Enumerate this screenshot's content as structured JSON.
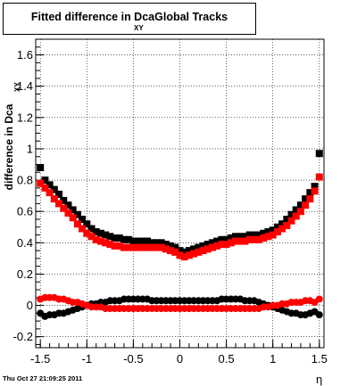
{
  "title": {
    "main_left": "Fitted difference in Dca",
    "subscript": "XY",
    "main_right": "Global Tracks"
  },
  "footer": "Thu Oct 27 21:09:25 2011",
  "colors": {
    "series_black": "#000000",
    "series_red": "#ff0000",
    "grid": "#000000",
    "background": "#ffffff"
  },
  "chart_data": {
    "type": "scatter",
    "title": "Fitted difference in Dca XY Global Tracks",
    "xlabel": "η",
    "ylabel": "difference in Dca",
    "ylabel_subscript": "XY",
    "xlim": [
      -1.55,
      1.55
    ],
    "ylim": [
      -0.27,
      1.7
    ],
    "x_ticks": [
      -1.5,
      -1,
      -0.5,
      0,
      0.5,
      1,
      1.5
    ],
    "x_tick_labels": [
      "-1.5",
      "-1",
      "-0.5",
      "0",
      "0.5",
      "1",
      "1.5"
    ],
    "y_ticks": [
      -0.2,
      0,
      0.2,
      0.4,
      0.6,
      0.8,
      1,
      1.2,
      1.4,
      1.6
    ],
    "y_tick_labels": [
      "-0.2",
      "0",
      "0.2",
      "0.4",
      "0.6",
      "0.8",
      "1",
      "1.2",
      "1.4",
      "1.6"
    ],
    "grid": true,
    "x_step": 0.05,
    "x_start": -1.5,
    "series": [
      {
        "marker": "square",
        "color": "#000000",
        "values": [
          0.88,
          0.8,
          0.77,
          0.74,
          0.71,
          0.67,
          0.64,
          0.61,
          0.58,
          0.55,
          0.52,
          0.49,
          0.47,
          0.46,
          0.45,
          0.44,
          0.43,
          0.43,
          0.42,
          0.42,
          0.41,
          0.41,
          0.41,
          0.41,
          0.4,
          0.4,
          0.4,
          0.39,
          0.38,
          0.37,
          0.35,
          0.34,
          0.35,
          0.36,
          0.37,
          0.38,
          0.39,
          0.4,
          0.41,
          0.42,
          0.42,
          0.43,
          0.44,
          0.44,
          0.44,
          0.45,
          0.45,
          0.45,
          0.46,
          0.47,
          0.48,
          0.5,
          0.52,
          0.55,
          0.58,
          0.61,
          0.64,
          0.68,
          0.72,
          0.76,
          0.97
        ]
      },
      {
        "marker": "square",
        "color": "#ff0000",
        "values": [
          0.78,
          0.75,
          0.72,
          0.68,
          0.65,
          0.62,
          0.59,
          0.56,
          0.52,
          0.49,
          0.46,
          0.44,
          0.42,
          0.41,
          0.4,
          0.39,
          0.38,
          0.38,
          0.37,
          0.37,
          0.37,
          0.37,
          0.37,
          0.37,
          0.37,
          0.37,
          0.37,
          0.36,
          0.35,
          0.34,
          0.32,
          0.31,
          0.32,
          0.33,
          0.34,
          0.35,
          0.36,
          0.37,
          0.38,
          0.39,
          0.39,
          0.4,
          0.41,
          0.41,
          0.41,
          0.42,
          0.42,
          0.42,
          0.43,
          0.44,
          0.45,
          0.47,
          0.49,
          0.51,
          0.54,
          0.57,
          0.6,
          0.64,
          0.68,
          0.73,
          0.82
        ]
      },
      {
        "marker": "circle",
        "color": "#000000",
        "values": [
          -0.05,
          -0.07,
          -0.06,
          -0.06,
          -0.05,
          -0.05,
          -0.04,
          -0.03,
          -0.02,
          -0.01,
          0.0,
          0.01,
          0.01,
          0.02,
          0.02,
          0.03,
          0.03,
          0.03,
          0.04,
          0.04,
          0.04,
          0.04,
          0.04,
          0.04,
          0.03,
          0.03,
          0.03,
          0.03,
          0.03,
          0.03,
          0.03,
          0.03,
          0.03,
          0.03,
          0.03,
          0.03,
          0.03,
          0.03,
          0.03,
          0.04,
          0.04,
          0.04,
          0.04,
          0.04,
          0.03,
          0.03,
          0.03,
          0.02,
          0.01,
          0.0,
          -0.01,
          -0.02,
          -0.03,
          -0.04,
          -0.05,
          -0.05,
          -0.06,
          -0.06,
          -0.05,
          -0.04,
          -0.06
        ]
      },
      {
        "marker": "circle",
        "color": "#ff0000",
        "values": [
          0.04,
          0.05,
          0.05,
          0.05,
          0.04,
          0.04,
          0.03,
          0.02,
          0.02,
          0.01,
          0.0,
          -0.01,
          -0.01,
          -0.01,
          -0.02,
          -0.02,
          -0.02,
          -0.02,
          -0.02,
          -0.02,
          -0.02,
          -0.02,
          -0.02,
          -0.02,
          -0.02,
          -0.02,
          -0.02,
          -0.02,
          -0.02,
          -0.02,
          -0.02,
          -0.02,
          -0.02,
          -0.02,
          -0.02,
          -0.02,
          -0.02,
          -0.02,
          -0.02,
          -0.02,
          -0.02,
          -0.02,
          -0.02,
          -0.02,
          -0.02,
          -0.02,
          -0.02,
          -0.02,
          -0.01,
          -0.01,
          0.0,
          0.0,
          0.01,
          0.01,
          0.02,
          0.02,
          0.02,
          0.03,
          0.03,
          0.02,
          0.04
        ]
      }
    ]
  }
}
